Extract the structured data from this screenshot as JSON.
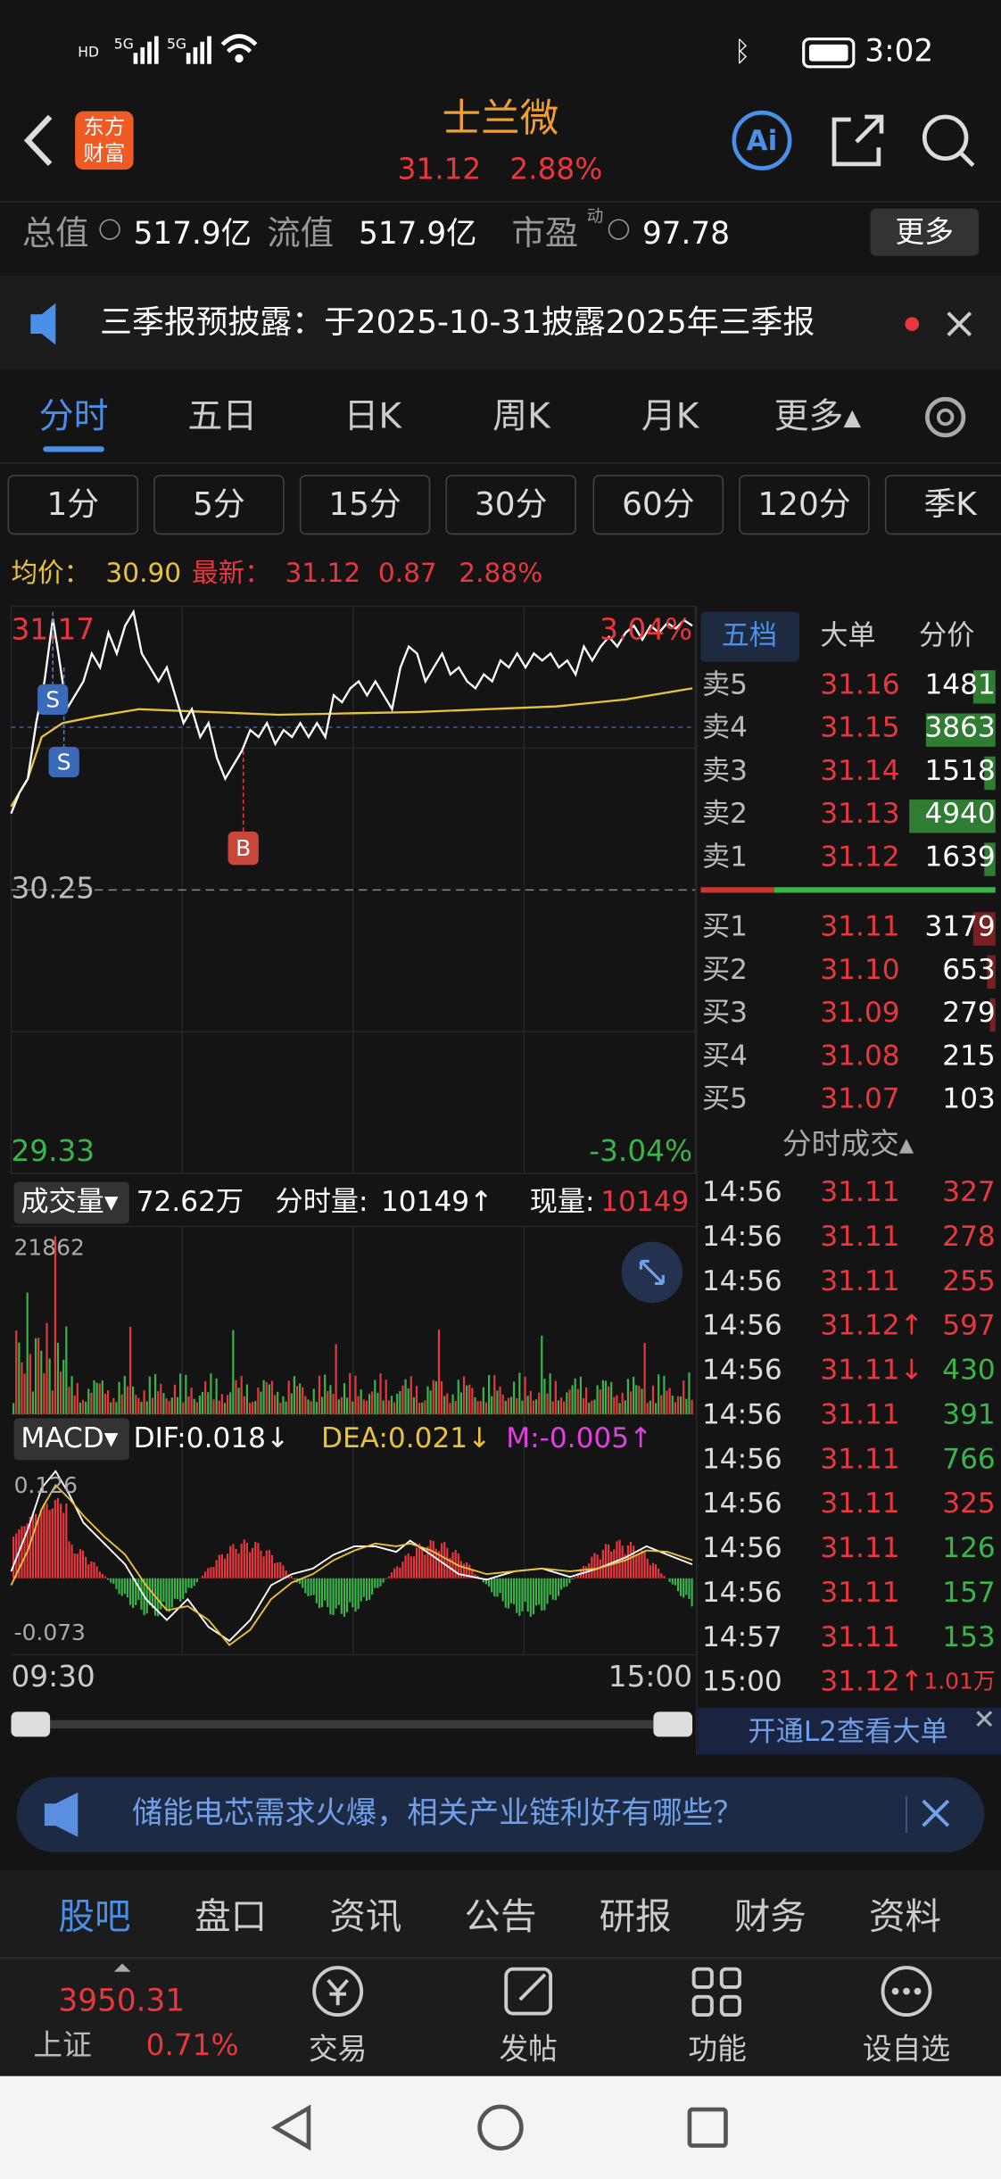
{
  "status_bar": {
    "network": [
      "5G",
      "5G"
    ],
    "time": "3:02"
  },
  "header": {
    "logo": [
      "东方",
      "财富"
    ],
    "title": "士兰微",
    "price": "31.12",
    "change_pct": "2.88%",
    "ai": "Ai"
  },
  "stats": {
    "items": [
      {
        "label": "总值",
        "value": "517.9亿"
      },
      {
        "label": "流值",
        "value": "517.9亿"
      },
      {
        "label": "市盈",
        "mark": "动",
        "value": "97.78"
      }
    ],
    "more": "更多"
  },
  "notice": "三季报预披露：于2025-10-31披露2025年三季报",
  "tabs": {
    "items": [
      "分时",
      "五日",
      "日K",
      "周K",
      "月K",
      "更多▴"
    ],
    "active": 0
  },
  "periods": [
    "1分",
    "5分",
    "15分",
    "30分",
    "60分",
    "120分",
    "季K"
  ],
  "quote": {
    "avg_label": "均价：",
    "avg": "30.90",
    "latest_label": "最新：",
    "latest": "31.12",
    "change": "0.87",
    "change_pct": "2.88%"
  },
  "intraday": {
    "high": "31.17",
    "high_pct": "3.04%",
    "mid": "30.25",
    "low": "29.33",
    "low_pct": "-3.04%",
    "signals": [
      "S",
      "S",
      "B"
    ]
  },
  "volume": {
    "label": "成交量▾",
    "total": "72.62万",
    "period_label": "分时量:",
    "period": "10149↑",
    "current_label": "现量:",
    "current": "10149",
    "max": "21862"
  },
  "macd": {
    "label": "MACD▾",
    "dif": "DIF:0.018↓",
    "dea": "DEA:0.021↓",
    "m": "M:-0.005↑",
    "max": "0.126",
    "min": "-0.073"
  },
  "time_axis": [
    "09:30",
    "15:00"
  ],
  "order_book": {
    "tabs": [
      "五档",
      "大单",
      "分价"
    ],
    "asks": [
      {
        "label": "卖5",
        "price": "31.16",
        "volume": "1481"
      },
      {
        "label": "卖4",
        "price": "31.15",
        "volume": "3863"
      },
      {
        "label": "卖3",
        "price": "31.14",
        "volume": "1518"
      },
      {
        "label": "卖2",
        "price": "31.13",
        "volume": "4940"
      },
      {
        "label": "卖1",
        "price": "31.12",
        "volume": "1639"
      }
    ],
    "bids": [
      {
        "label": "买1",
        "price": "31.11",
        "volume": "3179"
      },
      {
        "label": "买2",
        "price": "31.10",
        "volume": "653"
      },
      {
        "label": "买3",
        "price": "31.09",
        "volume": "279"
      },
      {
        "label": "买4",
        "price": "31.08",
        "volume": "215"
      },
      {
        "label": "买5",
        "price": "31.07",
        "volume": "103"
      }
    ]
  },
  "trades": {
    "title": "分时成交▴",
    "rows": [
      {
        "time": "14:56",
        "price": "31.11",
        "volume": "327",
        "color": "#e8383d"
      },
      {
        "time": "14:56",
        "price": "31.11",
        "volume": "278",
        "color": "#e8383d"
      },
      {
        "time": "14:56",
        "price": "31.11",
        "volume": "255",
        "color": "#e8383d"
      },
      {
        "time": "14:56",
        "price": "31.12↑",
        "volume": "597",
        "color": "#e8383d"
      },
      {
        "time": "14:56",
        "price": "31.11↓",
        "volume": "430",
        "color": "#3ab54a"
      },
      {
        "time": "14:56",
        "price": "31.11",
        "volume": "391",
        "color": "#3ab54a"
      },
      {
        "time": "14:56",
        "price": "31.11",
        "volume": "766",
        "color": "#3ab54a"
      },
      {
        "time": "14:56",
        "price": "31.11",
        "volume": "325",
        "color": "#e8383d"
      },
      {
        "time": "14:56",
        "price": "31.11",
        "volume": "126",
        "color": "#3ab54a"
      },
      {
        "time": "14:56",
        "price": "31.11",
        "volume": "157",
        "color": "#3ab54a"
      },
      {
        "time": "14:57",
        "price": "31.11",
        "volume": "153",
        "color": "#3ab54a"
      },
      {
        "time": "15:00",
        "price": "31.12↑",
        "volume": "1.01万",
        "color": "#e8383d"
      }
    ]
  },
  "l2_link": "开通L2查看大单",
  "banner": "储能电芯需求火爆，相关产业链利好有哪些？",
  "bottom_tabs": {
    "items": [
      "股吧",
      "盘口",
      "资讯",
      "公告",
      "研报",
      "财务",
      "资料"
    ],
    "active": 0
  },
  "index": {
    "value": "3950.31",
    "name": "上证",
    "change_pct": "0.71%"
  },
  "toolbar": [
    "交易",
    "发帖",
    "功能",
    "设自选"
  ]
}
